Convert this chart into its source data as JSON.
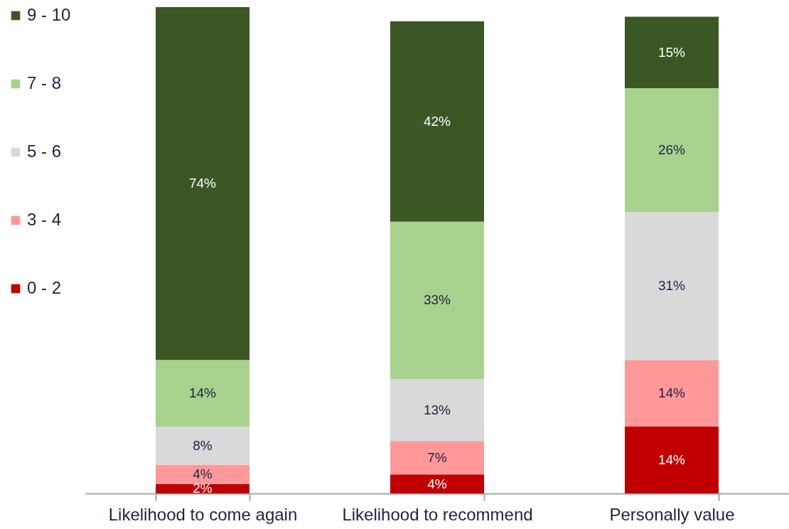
{
  "chart_data": {
    "type": "bar",
    "stacked": true,
    "legend": "left",
    "categories": [
      "Likelihood to come again",
      "Likelihood to recommend",
      "Personally value"
    ],
    "series": [
      {
        "name": "0 - 2",
        "color": "#c00000",
        "values": [
          2,
          4,
          14
        ],
        "value_labels": [
          "2%",
          "4%",
          "14%"
        ]
      },
      {
        "name": "3 - 4",
        "color": "#ff9999",
        "values": [
          4,
          7,
          14
        ],
        "value_labels": [
          "4%",
          "7%",
          "14%"
        ]
      },
      {
        "name": "5 - 6",
        "color": "#d9d9d9",
        "values": [
          8,
          13,
          31
        ],
        "value_labels": [
          "8%",
          "13%",
          "31%"
        ]
      },
      {
        "name": "7 - 8",
        "color": "#a9d18e",
        "values": [
          14,
          33,
          26
        ],
        "value_labels": [
          "14%",
          "33%",
          "26%"
        ]
      },
      {
        "name": "9 - 10",
        "color": "#3a5724",
        "values": [
          74,
          42,
          15
        ],
        "value_labels": [
          "74%",
          "42%",
          "15%"
        ]
      }
    ]
  }
}
